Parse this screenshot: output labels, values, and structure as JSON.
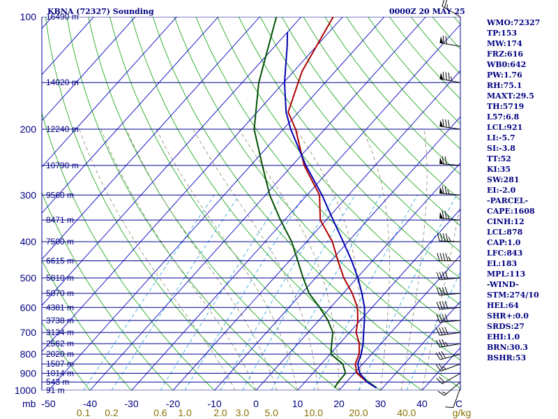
{
  "header": {
    "station": "KBNA (72327) Sounding",
    "time": "0000Z 20 MAY 25"
  },
  "stats": [
    "WMO:72327",
    "TP:153",
    "MW:174",
    "FRZ:616",
    "WB0:642",
    "PW:1.76",
    "RH:75.1",
    "MAXT:29.5",
    "TH:5719",
    "L57:6.8",
    "LCL:921",
    "LI:-5.7",
    "SI:-3.8",
    "TT:52",
    "KI:35",
    "SW:281",
    "EI:-2.0",
    "-PARCEL-",
    "CAPE:1608",
    "CINH:12",
    "LCL:878",
    "CAP:1.0",
    "LFC:843",
    "EL:183",
    "MPL:113",
    "-WIND-",
    "STM:274/10",
    "HEL:64",
    "SHR+:0.0",
    "SRDS:27",
    "EHI:1.0",
    "BRN:30.3",
    "BSHR:53"
  ],
  "colors": {
    "isobar": "#000090",
    "isotherm": "#0000c0",
    "dry_adiabat": "#22aa22",
    "moist_adiabat": "#888866",
    "mixing_ratio": "#33aadd",
    "temperature": "#b00000",
    "dewpoint": "#005000",
    "parcel": "#0000b0",
    "label": "#000080",
    "mixing_label": "#8b6f00"
  },
  "chart_data": {
    "type": "skew-t log-p sounding",
    "title": "KBNA (72327) Sounding",
    "pressure_axis": {
      "unit": "mb",
      "scale": "log",
      "range": [
        1000,
        100
      ],
      "ticks": [
        100,
        200,
        300,
        400,
        500,
        600,
        700,
        800,
        900,
        1000
      ]
    },
    "temperature_axis": {
      "unit": "C",
      "ticks": [
        -50,
        -40,
        -30,
        -20,
        -10,
        0,
        10,
        20,
        30,
        40
      ]
    },
    "mixing_ratio_axis": {
      "unit": "g/kg",
      "ticks": [
        "0.1",
        "0.2",
        "0.6",
        "1.0",
        "2.0",
        "3.0",
        "5.0",
        "10.0",
        "20.0",
        "40.0"
      ]
    },
    "isobars": [
      {
        "p": 100,
        "height_label": "16490 m"
      },
      {
        "p": 150,
        "height_label": "14020 m"
      },
      {
        "p": 200,
        "height_label": "12240 m"
      },
      {
        "p": 250,
        "height_label": "10790 m"
      },
      {
        "p": 300,
        "height_label": "9560 m"
      },
      {
        "p": 350,
        "height_label": "8471 m"
      },
      {
        "p": 400,
        "height_label": "7500 m"
      },
      {
        "p": 450,
        "height_label": "6615 m"
      },
      {
        "p": 500,
        "height_label": "5810 m"
      },
      {
        "p": 550,
        "height_label": "5070 m"
      },
      {
        "p": 600,
        "height_label": "4381 m"
      },
      {
        "p": 650,
        "height_label": "3738 m"
      },
      {
        "p": 700,
        "height_label": "3134 m"
      },
      {
        "p": 750,
        "height_label": "2562 m"
      },
      {
        "p": 800,
        "height_label": "2020 m"
      },
      {
        "p": 850,
        "height_label": "1507 m"
      },
      {
        "p": 900,
        "height_label": "1014 m"
      },
      {
        "p": 950,
        "height_label": "543 m"
      },
      {
        "p": 1000,
        "height_label": "91 m"
      }
    ],
    "series": [
      {
        "key": "temperature",
        "points": [
          [
            985,
            28.5
          ],
          [
            950,
            25.0
          ],
          [
            900,
            20.6
          ],
          [
            850,
            18.2
          ],
          [
            800,
            17.0
          ],
          [
            750,
            14.8
          ],
          [
            700,
            11.6
          ],
          [
            650,
            9.4
          ],
          [
            600,
            6.5
          ],
          [
            550,
            2.2
          ],
          [
            500,
            -3.2
          ],
          [
            450,
            -8.3
          ],
          [
            400,
            -13.8
          ],
          [
            350,
            -21.4
          ],
          [
            300,
            -27.0
          ],
          [
            250,
            -37.1
          ],
          [
            200,
            -47.0
          ],
          [
            180,
            -52.5
          ],
          [
            150,
            -56.5
          ],
          [
            140,
            -58.0
          ],
          [
            100,
            -62.3
          ]
        ]
      },
      {
        "key": "dewpoint",
        "points": [
          [
            985,
            18.4
          ],
          [
            950,
            18.0
          ],
          [
            900,
            17.9
          ],
          [
            850,
            15.2
          ],
          [
            800,
            10.2
          ],
          [
            750,
            8.1
          ],
          [
            700,
            6.0
          ],
          [
            650,
            2.2
          ],
          [
            600,
            -2.6
          ],
          [
            550,
            -8.2
          ],
          [
            500,
            -13.0
          ],
          [
            450,
            -18.0
          ],
          [
            400,
            -23.6
          ],
          [
            350,
            -31.0
          ],
          [
            300,
            -39.0
          ],
          [
            250,
            -47.2
          ],
          [
            200,
            -57.0
          ],
          [
            180,
            -60.3
          ],
          [
            150,
            -66.0
          ],
          [
            100,
            -76.0
          ]
        ]
      },
      {
        "key": "parcel",
        "points": [
          [
            985,
            28.5
          ],
          [
            950,
            25.0
          ],
          [
            900,
            21.3
          ],
          [
            850,
            18.8
          ],
          [
            800,
            17.5
          ],
          [
            750,
            15.7
          ],
          [
            700,
            13.4
          ],
          [
            650,
            11.0
          ],
          [
            600,
            8.2
          ],
          [
            550,
            4.5
          ],
          [
            500,
            0.2
          ],
          [
            450,
            -5.0
          ],
          [
            400,
            -11.2
          ],
          [
            350,
            -18.3
          ],
          [
            300,
            -26.4
          ],
          [
            250,
            -36.7
          ],
          [
            200,
            -48.2
          ],
          [
            180,
            -53.0
          ],
          [
            150,
            -59.8
          ],
          [
            120,
            -67.0
          ],
          [
            110,
            -70.0
          ]
        ]
      }
    ],
    "winds": [
      {
        "p": 985,
        "dir": 200,
        "kt": 10
      },
      {
        "p": 950,
        "dir": 230,
        "kt": 15
      },
      {
        "p": 900,
        "dir": 240,
        "kt": 20
      },
      {
        "p": 850,
        "dir": 250,
        "kt": 25
      },
      {
        "p": 800,
        "dir": 255,
        "kt": 30
      },
      {
        "p": 750,
        "dir": 260,
        "kt": 35
      },
      {
        "p": 700,
        "dir": 262,
        "kt": 40
      },
      {
        "p": 650,
        "dir": 265,
        "kt": 40
      },
      {
        "p": 600,
        "dir": 265,
        "kt": 40
      },
      {
        "p": 550,
        "dir": 265,
        "kt": 40
      },
      {
        "p": 500,
        "dir": 265,
        "kt": 40
      },
      {
        "p": 450,
        "dir": 270,
        "kt": 45
      },
      {
        "p": 400,
        "dir": 272,
        "kt": 45
      },
      {
        "p": 350,
        "dir": 275,
        "kt": 75
      },
      {
        "p": 300,
        "dir": 275,
        "kt": 75
      },
      {
        "p": 250,
        "dir": 275,
        "kt": 70
      },
      {
        "p": 200,
        "dir": 278,
        "kt": 80
      },
      {
        "p": 150,
        "dir": 280,
        "kt": 85
      },
      {
        "p": 120,
        "dir": 280,
        "kt": 70
      },
      {
        "p": 100,
        "dir": 300,
        "kt": 25
      }
    ]
  }
}
